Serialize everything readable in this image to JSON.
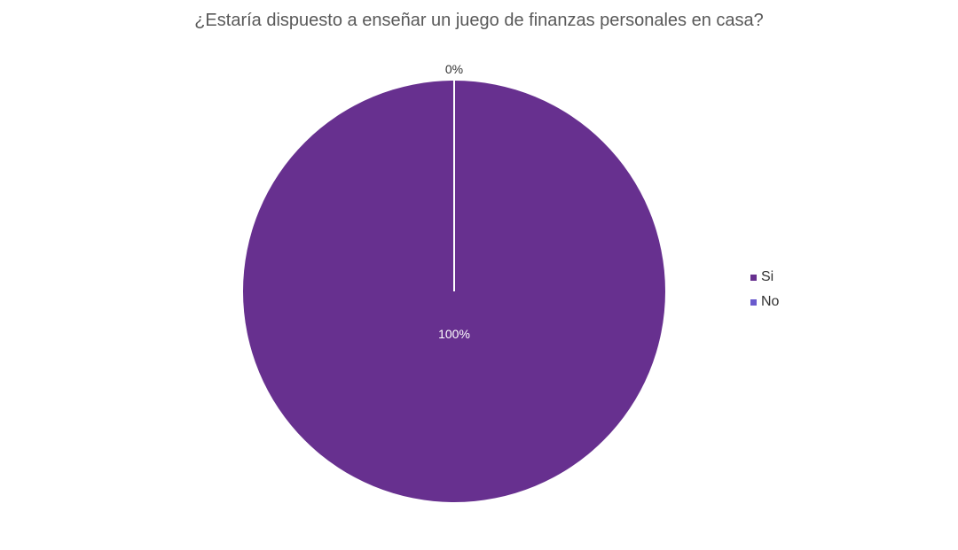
{
  "chart_data": {
    "type": "pie",
    "title": "¿Estaría dispuesto a enseñar un juego de finanzas personales en casa?",
    "categories": [
      "Si",
      "No"
    ],
    "values": [
      100,
      0
    ],
    "data_labels": [
      "100%",
      "0%"
    ],
    "colors": [
      "#67308f",
      "#6a5acd"
    ],
    "legend_position": "right"
  }
}
